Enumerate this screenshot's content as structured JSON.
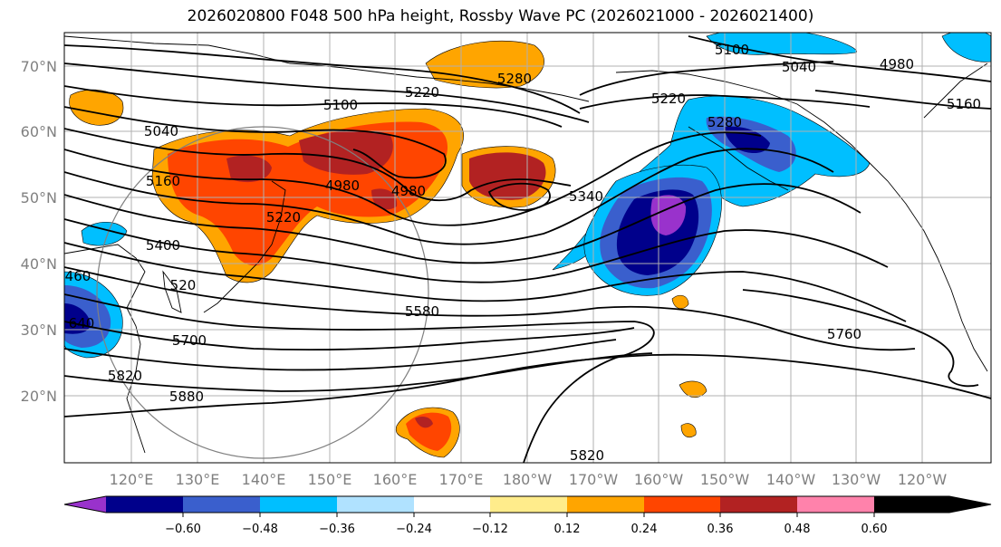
{
  "title": "2026020800 F048 500 hPa height, Rossby Wave PC (2026021000 - 2026021400)",
  "lat_labels": [
    "70°N",
    "60°N",
    "50°N",
    "40°N",
    "30°N",
    "20°N"
  ],
  "lon_labels": [
    "120°E",
    "130°E",
    "140°E",
    "150°E",
    "160°E",
    "170°E",
    "180°W",
    "170°W",
    "160°W",
    "150°W",
    "140°W",
    "130°W",
    "120°W"
  ],
  "contour_labels": [
    "5220",
    "5100",
    "5040",
    "5160",
    "5400",
    "5280",
    "4980",
    "4980",
    "5220",
    "5280",
    "5040",
    "4980",
    "5160",
    "5100",
    "5340",
    "5580",
    "5700",
    "5820",
    "5880",
    "5760",
    "5820",
    "5220",
    "460",
    "520",
    "640"
  ],
  "colorbar": {
    "tick_labels": [
      "−0.60",
      "−0.48",
      "−0.36",
      "−0.24",
      "−0.12",
      "0.12",
      "0.24",
      "0.36",
      "0.48",
      "0.60"
    ],
    "colors": [
      "#9932cc",
      "#00008b",
      "#3a5fcd",
      "#00bfff",
      "#b0e2ff",
      "#ffffff",
      "#ffec8b",
      "#ffa500",
      "#ff4500",
      "#b22222",
      "#ff82ab"
    ]
  },
  "map_data": {
    "type": "map",
    "projection": "equirectangular",
    "lon_range": [
      110,
      251
    ],
    "lat_range": [
      10,
      75
    ],
    "field": "500 hPa height",
    "shading": "Rossby Wave PC",
    "grid": true
  }
}
